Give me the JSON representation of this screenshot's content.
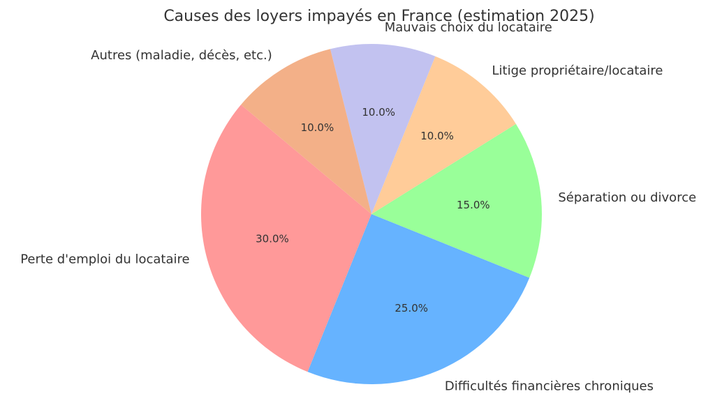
{
  "chart_data": {
    "type": "pie",
    "title": "Causes des loyers impayés en France (estimation 2025)",
    "slices": [
      {
        "label": "Perte d'emploi du locataire",
        "value": 30.0,
        "pct_label": "30.0%",
        "color": "#ff9999"
      },
      {
        "label": "Difficultés financières chroniques",
        "value": 25.0,
        "pct_label": "25.0%",
        "color": "#66b3ff"
      },
      {
        "label": "Séparation ou divorce",
        "value": 15.0,
        "pct_label": "15.0%",
        "color": "#99ff99"
      },
      {
        "label": "Litige propriétaire/locataire",
        "value": 10.0,
        "pct_label": "10.0%",
        "color": "#ffcc99"
      },
      {
        "label": "Mauvais choix du locataire",
        "value": 10.0,
        "pct_label": "10.0%",
        "color": "#c2c2f0"
      },
      {
        "label": "Autres (maladie, décès, etc.)",
        "value": 10.0,
        "pct_label": "10.0%",
        "color": "#f3b088"
      }
    ],
    "start_angle_deg": 140,
    "direction": "counterclockwise"
  }
}
